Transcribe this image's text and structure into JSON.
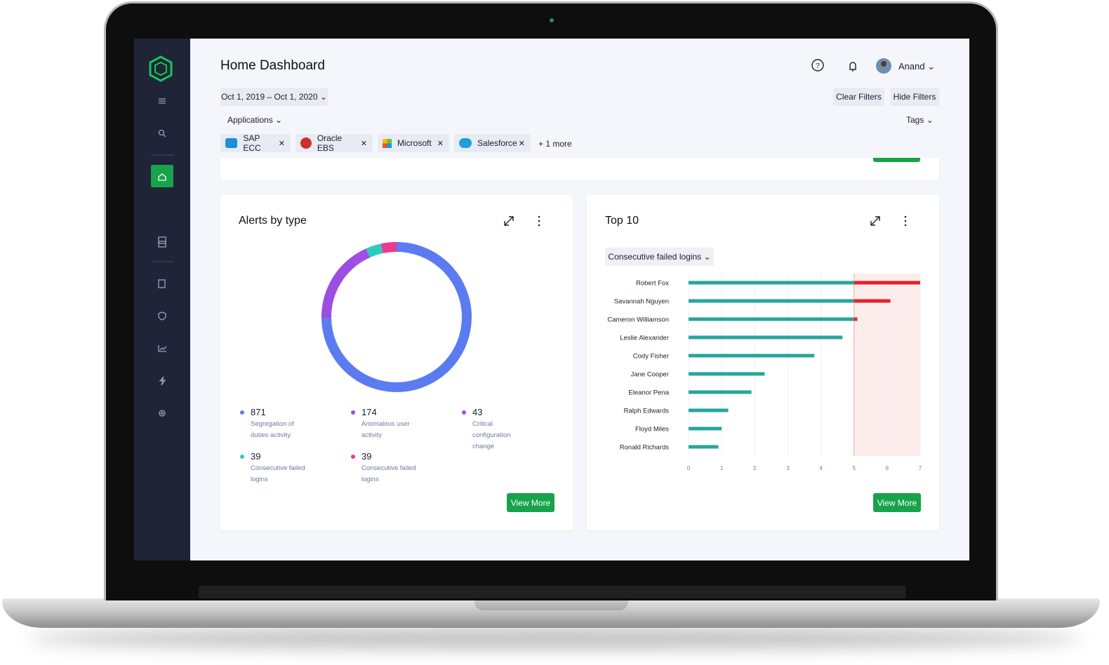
{
  "header": {
    "title": "Home Dashboard",
    "user": "Anand"
  },
  "filters": {
    "date_range": "Oct 1, 2019 – Oct 1, 2020",
    "clear": "Clear Filters",
    "hide": "Hide Filters",
    "applications": "Applications",
    "tags": "Tags",
    "chips": [
      "SAP ECC",
      "Oracle EBS",
      "Microsoft",
      "Salesforce"
    ],
    "more": "+ 1 more"
  },
  "chart_data": [
    {
      "type": "donut",
      "title": "Alerts by type",
      "categories": [
        "Segregation of duties activity",
        "Anomalous user activity",
        "Critical configuration change",
        "Consecutive failed logins",
        "Consecutive failed logins"
      ],
      "values": [
        871,
        174,
        43,
        39,
        39
      ],
      "colors": [
        "#5b7cf0",
        "#9b4ee0",
        "#a24fe6",
        "#2ec9c0",
        "#ec3a8f"
      ],
      "action": "View More"
    },
    {
      "type": "bar",
      "orientation": "horizontal",
      "title": "Top 10",
      "metric": "Consecutive failed logins",
      "categories": [
        "Robert Fox",
        "Savannah Nguyen",
        "Cameron Williamson",
        "Leslie Alexander",
        "Cody Fisher",
        "Jane Cooper",
        "Eleanor Pena",
        "Ralph Edwards",
        "Floyd Miles",
        "Ronald Richards"
      ],
      "values": [
        7.0,
        6.1,
        5.1,
        4.65,
        3.8,
        2.3,
        1.9,
        1.2,
        1.0,
        0.9
      ],
      "color": "#26a69a",
      "threshold": 5,
      "threshold_color": "#e8202a",
      "xlim": [
        0,
        7
      ],
      "xticks": [
        0,
        1,
        2,
        3,
        4,
        5,
        6,
        7
      ],
      "grid": true,
      "action": "View More"
    }
  ]
}
